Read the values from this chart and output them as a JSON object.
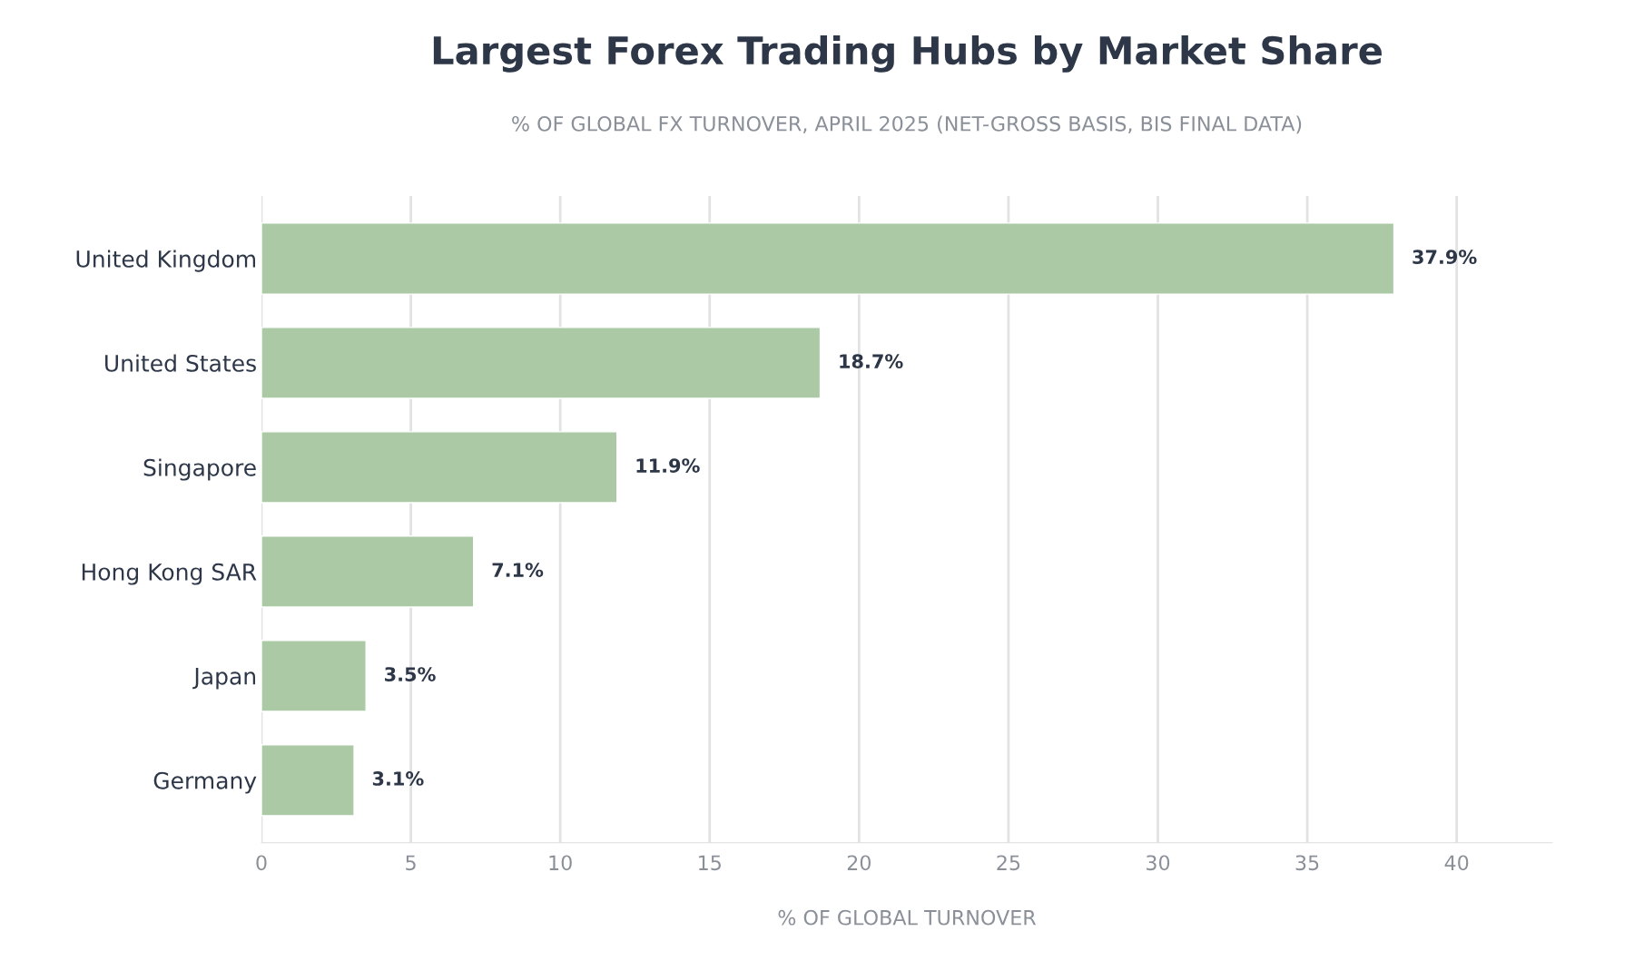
{
  "chart_data": {
    "type": "bar",
    "orientation": "horizontal",
    "title": "Largest Forex Trading Hubs by Market Share",
    "subtitle": "% OF GLOBAL FX TURNOVER, APRIL 2025 (NET-GROSS BASIS, BIS FINAL DATA)",
    "xlabel": "% OF GLOBAL TURNOVER",
    "categories": [
      "United Kingdom",
      "United States",
      "Singapore",
      "Hong Kong SAR",
      "Japan",
      "Germany"
    ],
    "values": [
      37.9,
      18.7,
      11.9,
      7.1,
      3.5,
      3.1
    ],
    "value_labels": [
      "37.9%",
      "18.7%",
      "11.9%",
      "7.1%",
      "3.5%",
      "3.1%"
    ],
    "color": "#abc9a4",
    "xlim": [
      0,
      43.2
    ],
    "xticks": [
      0,
      5,
      10,
      15,
      20,
      25,
      30,
      35,
      40
    ],
    "grid": "x",
    "legend": false
  }
}
